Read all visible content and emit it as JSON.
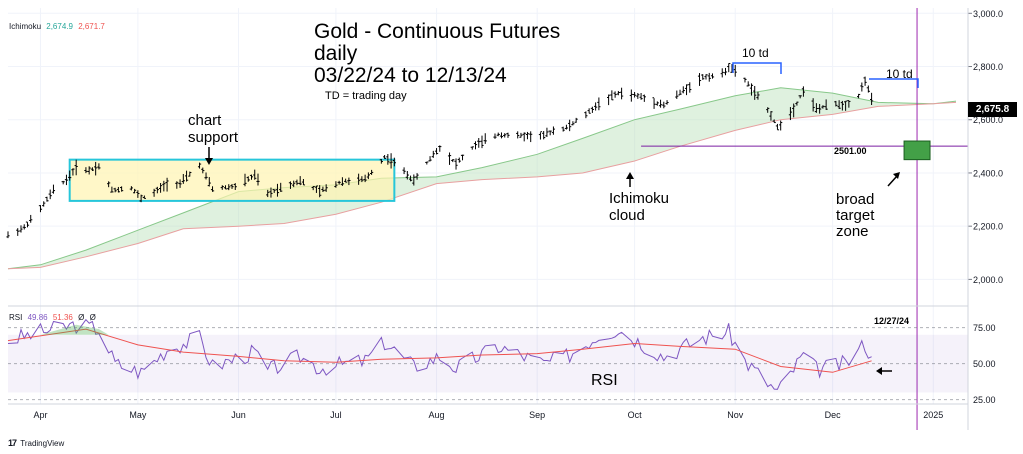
{
  "chart_data": {
    "type": "candlestick",
    "title": "Gold - Continuous Futures",
    "subtitle_lines": [
      "daily",
      "03/22/24 to 12/13/24"
    ],
    "note": "TD = trading day",
    "indicator_label": "Ichimoku",
    "indicator_values": [
      "2,674.9",
      "2,671.7"
    ],
    "last_price": "2,675.8",
    "price_axis": {
      "ylim": [
        1900,
        3050
      ],
      "ticks": [
        {
          "value": 2000,
          "label": "2,000.0"
        },
        {
          "value": 2200,
          "label": "2,200.0"
        },
        {
          "value": 2400,
          "label": "2,400.0"
        },
        {
          "value": 2600,
          "label": "2,600.0"
        },
        {
          "value": 2800,
          "label": "2,800.0"
        },
        {
          "value": 3000,
          "label": "3,000.0"
        }
      ]
    },
    "time_axis": {
      "labels": [
        "Apr",
        "May",
        "Jun",
        "Jul",
        "Aug",
        "Sep",
        "Oct",
        "Nov",
        "Dec",
        "2025"
      ]
    },
    "price_path": [
      [
        "2024-03-22",
        2165
      ],
      [
        "2024-03-27",
        2195
      ],
      [
        "2024-04-01",
        2265
      ],
      [
        "2024-04-05",
        2335
      ],
      [
        "2024-04-09",
        2375
      ],
      [
        "2024-04-12",
        2420
      ],
      [
        "2024-04-16",
        2410
      ],
      [
        "2024-04-19",
        2425
      ],
      [
        "2024-04-23",
        2335
      ],
      [
        "2024-04-29",
        2345
      ],
      [
        "2024-05-02",
        2305
      ],
      [
        "2024-05-06",
        2325
      ],
      [
        "2024-05-10",
        2360
      ],
      [
        "2024-05-14",
        2360
      ],
      [
        "2024-05-20",
        2430
      ],
      [
        "2024-05-24",
        2340
      ],
      [
        "2024-05-31",
        2350
      ],
      [
        "2024-06-06",
        2390
      ],
      [
        "2024-06-10",
        2320
      ],
      [
        "2024-06-14",
        2345
      ],
      [
        "2024-06-20",
        2370
      ],
      [
        "2024-06-26",
        2330
      ],
      [
        "2024-07-03",
        2370
      ],
      [
        "2024-07-10",
        2375
      ],
      [
        "2024-07-16",
        2460
      ],
      [
        "2024-07-19",
        2440
      ],
      [
        "2024-07-25",
        2370
      ],
      [
        "2024-07-31",
        2470
      ],
      [
        "2024-08-02",
        2495
      ],
      [
        "2024-08-07",
        2435
      ],
      [
        "2024-08-13",
        2505
      ],
      [
        "2024-08-20",
        2545
      ],
      [
        "2024-08-26",
        2540
      ],
      [
        "2024-09-03",
        2540
      ],
      [
        "2024-09-06",
        2560
      ],
      [
        "2024-09-10",
        2570
      ],
      [
        "2024-09-16",
        2620
      ],
      [
        "2024-09-20",
        2660
      ],
      [
        "2024-09-26",
        2700
      ],
      [
        "2024-10-02",
        2690
      ],
      [
        "2024-10-10",
        2655
      ],
      [
        "2024-10-16",
        2710
      ],
      [
        "2024-10-22",
        2760
      ],
      [
        "2024-10-28",
        2770
      ],
      [
        "2024-10-30",
        2800
      ],
      [
        "2024-11-04",
        2750
      ],
      [
        "2024-11-07",
        2700
      ],
      [
        "2024-11-12",
        2620
      ],
      [
        "2024-11-14",
        2570
      ],
      [
        "2024-11-19",
        2640
      ],
      [
        "2024-11-22",
        2710
      ],
      [
        "2024-11-26",
        2640
      ],
      [
        "2024-12-02",
        2660
      ],
      [
        "2024-12-05",
        2655
      ],
      [
        "2024-12-09",
        2690
      ],
      [
        "2024-12-11",
        2750
      ],
      [
        "2024-12-13",
        2675
      ]
    ],
    "ichimoku_cloud": {
      "span_a": [
        [
          "2024-03-22",
          2040
        ],
        [
          "2024-04-01",
          2055
        ],
        [
          "2024-04-15",
          2110
        ],
        [
          "2024-05-01",
          2185
        ],
        [
          "2024-05-15",
          2250
        ],
        [
          "2024-06-01",
          2330
        ],
        [
          "2024-06-15",
          2345
        ],
        [
          "2024-07-01",
          2355
        ],
        [
          "2024-07-15",
          2380
        ],
        [
          "2024-08-01",
          2385
        ],
        [
          "2024-08-15",
          2420
        ],
        [
          "2024-09-01",
          2470
        ],
        [
          "2024-09-15",
          2530
        ],
        [
          "2024-10-01",
          2600
        ],
        [
          "2024-10-15",
          2640
        ],
        [
          "2024-11-01",
          2690
        ],
        [
          "2024-11-15",
          2720
        ],
        [
          "2024-12-01",
          2700
        ],
        [
          "2024-12-15",
          2665
        ],
        [
          "2025-01-01",
          2660
        ],
        [
          "2025-01-08",
          2670
        ]
      ],
      "span_b": [
        [
          "2024-03-22",
          2040
        ],
        [
          "2024-04-01",
          2045
        ],
        [
          "2024-04-15",
          2085
        ],
        [
          "2024-05-01",
          2135
        ],
        [
          "2024-05-15",
          2190
        ],
        [
          "2024-06-01",
          2200
        ],
        [
          "2024-06-15",
          2210
        ],
        [
          "2024-07-01",
          2245
        ],
        [
          "2024-07-15",
          2290
        ],
        [
          "2024-08-01",
          2360
        ],
        [
          "2024-08-15",
          2375
        ],
        [
          "2024-09-01",
          2385
        ],
        [
          "2024-09-15",
          2400
        ],
        [
          "2024-10-01",
          2445
        ],
        [
          "2024-10-15",
          2500
        ],
        [
          "2024-11-01",
          2560
        ],
        [
          "2024-11-15",
          2600
        ],
        [
          "2024-12-01",
          2620
        ],
        [
          "2024-12-15",
          2650
        ],
        [
          "2025-01-01",
          2660
        ],
        [
          "2025-01-08",
          2665
        ]
      ]
    },
    "support_zone": {
      "from": "2024-04-10",
      "to": "2024-07-19",
      "low": 2295,
      "high": 2450
    },
    "support_line": {
      "value": 2501,
      "label": "2501.00"
    },
    "target_zone": {
      "from": "2024-12-23",
      "to": "2024-12-31",
      "low": 2450,
      "high": 2520
    },
    "target_date": {
      "date": "2024-12-27",
      "label": "12/27/24"
    },
    "rsi": {
      "label": "RSI",
      "values": [
        "49.86",
        "51.36",
        "Ø",
        "Ø"
      ],
      "ylim": [
        22,
        90
      ],
      "band": [
        30,
        70
      ],
      "ticks": [
        {
          "value": 25,
          "label": "25.00"
        },
        {
          "value": 50,
          "label": "50.00"
        },
        {
          "value": 75,
          "label": "75.00"
        }
      ],
      "rsi_path": [
        [
          "2024-03-22",
          66
        ],
        [
          "2024-04-01",
          72
        ],
        [
          "2024-04-12",
          77
        ],
        [
          "2024-04-19",
          74
        ],
        [
          "2024-04-24",
          50
        ],
        [
          "2024-05-02",
          44
        ],
        [
          "2024-05-10",
          60
        ],
        [
          "2024-05-20",
          68
        ],
        [
          "2024-05-24",
          48
        ],
        [
          "2024-06-06",
          58
        ],
        [
          "2024-06-10",
          45
        ],
        [
          "2024-06-20",
          55
        ],
        [
          "2024-06-26",
          47
        ],
        [
          "2024-07-10",
          52
        ],
        [
          "2024-07-16",
          65
        ],
        [
          "2024-07-25",
          48
        ],
        [
          "2024-08-02",
          55
        ],
        [
          "2024-08-07",
          47
        ],
        [
          "2024-08-20",
          62
        ],
        [
          "2024-09-03",
          50
        ],
        [
          "2024-09-10",
          55
        ],
        [
          "2024-09-20",
          70
        ],
        [
          "2024-09-26",
          74
        ],
        [
          "2024-10-10",
          55
        ],
        [
          "2024-10-22",
          68
        ],
        [
          "2024-10-30",
          72
        ],
        [
          "2024-11-04",
          52
        ],
        [
          "2024-11-14",
          30
        ],
        [
          "2024-11-22",
          56
        ],
        [
          "2024-11-26",
          46
        ],
        [
          "2024-12-05",
          50
        ],
        [
          "2024-12-11",
          64
        ],
        [
          "2024-12-13",
          52
        ]
      ],
      "signal_path": [
        [
          "2024-03-22",
          66
        ],
        [
          "2024-04-15",
          74
        ],
        [
          "2024-05-01",
          63
        ],
        [
          "2024-05-15",
          58
        ],
        [
          "2024-06-01",
          55
        ],
        [
          "2024-06-15",
          52
        ],
        [
          "2024-07-01",
          51
        ],
        [
          "2024-07-15",
          53
        ],
        [
          "2024-08-01",
          54
        ],
        [
          "2024-08-15",
          56
        ],
        [
          "2024-09-01",
          57
        ],
        [
          "2024-09-15",
          60
        ],
        [
          "2024-10-01",
          64
        ],
        [
          "2024-10-15",
          62
        ],
        [
          "2024-11-01",
          60
        ],
        [
          "2024-11-15",
          48
        ],
        [
          "2024-12-01",
          44
        ],
        [
          "2024-12-13",
          52
        ]
      ]
    }
  },
  "annotations": {
    "chart_support": [
      "chart",
      "support"
    ],
    "ichimoku_cloud": [
      "Ichimoku",
      "cloud"
    ],
    "broad_target_zone": [
      "broad",
      "target",
      "zone"
    ],
    "rsi_label": "RSI",
    "td_left": "10 td",
    "td_right": "10 td"
  },
  "footer": {
    "brand": "TradingView"
  }
}
